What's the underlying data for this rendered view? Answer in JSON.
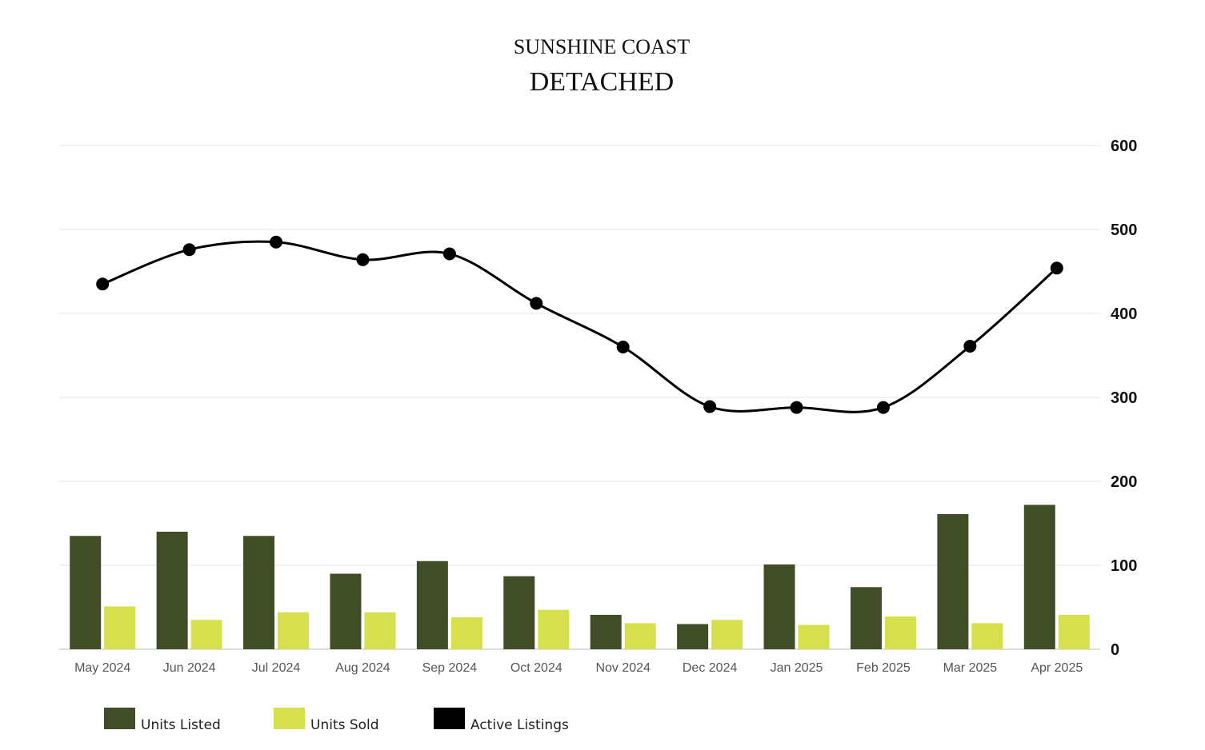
{
  "header": {
    "region": "SUNSHINE COAST",
    "property_type": "DETACHED"
  },
  "chart_data": {
    "type": "bar",
    "categories": [
      "May 2024",
      "Jun 2024",
      "Jul 2024",
      "Aug 2024",
      "Sep 2024",
      "Oct 2024",
      "Nov 2024",
      "Dec 2024",
      "Jan 2025",
      "Feb 2025",
      "Mar 2025",
      "Apr 2025"
    ],
    "series": [
      {
        "name": "Units Listed",
        "kind": "bar",
        "color": "#414d26",
        "values": [
          135,
          140,
          135,
          90,
          105,
          87,
          41,
          30,
          101,
          74,
          161,
          172
        ]
      },
      {
        "name": "Units Sold",
        "kind": "bar",
        "color": "#d6e04c",
        "values": [
          51,
          35,
          44,
          44,
          38,
          47,
          31,
          35,
          29,
          39,
          31,
          41
        ]
      },
      {
        "name": "Active Listings",
        "kind": "line",
        "color": "#000000",
        "values": [
          435,
          476,
          485,
          464,
          471,
          412,
          360,
          289,
          288,
          288,
          361,
          454
        ]
      }
    ],
    "y_axis": {
      "position": "right",
      "ylim": [
        0,
        600
      ],
      "ticks": [
        "0",
        "100",
        "200",
        "300",
        "400",
        "500",
        "600"
      ]
    },
    "grid": true,
    "legend_position": "bottom-left"
  }
}
